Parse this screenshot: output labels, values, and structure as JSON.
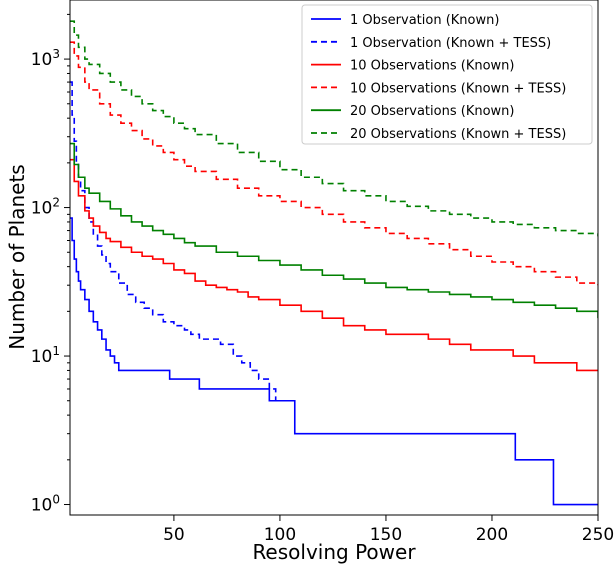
{
  "chart_data": {
    "type": "line",
    "title": "",
    "xlabel": "Resolving Power",
    "ylabel": "Number of Planets",
    "xlim": [
      1,
      250
    ],
    "ylim": [
      0.85,
      2500
    ],
    "yscale": "log",
    "grid": false,
    "legend_position": "top-right",
    "x_ticks": [
      {
        "value": 50,
        "label": "50"
      },
      {
        "value": 100,
        "label": "100"
      },
      {
        "value": 150,
        "label": "150"
      },
      {
        "value": 200,
        "label": "200"
      },
      {
        "value": 250,
        "label": "250"
      }
    ],
    "y_ticks": [
      {
        "value": 1,
        "base": "10",
        "exp": "0"
      },
      {
        "value": 10,
        "base": "10",
        "exp": "1"
      },
      {
        "value": 100,
        "base": "10",
        "exp": "2"
      },
      {
        "value": 1000,
        "base": "10",
        "exp": "3"
      }
    ],
    "series": [
      {
        "name": "1 Observation (Known)",
        "color": "#0000ff",
        "dash": "solid",
        "x": [
          1,
          2,
          3,
          4,
          5,
          6,
          8,
          10,
          12,
          14,
          16,
          18,
          20,
          22,
          24,
          35,
          45,
          48,
          58,
          62,
          75,
          88,
          95,
          98,
          105,
          107,
          140,
          180,
          210,
          211,
          228,
          229,
          250
        ],
        "y": [
          85,
          60,
          45,
          37,
          32,
          28,
          24,
          20,
          17,
          15,
          13,
          11,
          10,
          9,
          8,
          8,
          8,
          7,
          7,
          6,
          6,
          6,
          5,
          5,
          5,
          3,
          3,
          3,
          3,
          2,
          2,
          1,
          1
        ]
      },
      {
        "name": "1 Observation (Known + TESS)",
        "color": "#0000ff",
        "dash": "dashed",
        "x": [
          1,
          2,
          3,
          4,
          5,
          6,
          8,
          10,
          12,
          14,
          16,
          18,
          20,
          24,
          28,
          32,
          36,
          40,
          45,
          50,
          55,
          58,
          62,
          68,
          72,
          78,
          82,
          86,
          90,
          95,
          98,
          100
        ],
        "y": [
          700,
          420,
          280,
          200,
          160,
          130,
          100,
          80,
          65,
          55,
          48,
          42,
          37,
          31,
          26,
          23,
          21,
          19,
          17,
          16,
          15,
          14,
          13,
          13,
          12,
          10,
          9,
          8,
          7,
          6,
          5,
          5
        ]
      },
      {
        "name": "10 Observations (Known)",
        "color": "#ff0000",
        "dash": "solid",
        "x": [
          1,
          3,
          5,
          8,
          10,
          12,
          15,
          18,
          20,
          25,
          30,
          35,
          40,
          45,
          50,
          55,
          60,
          65,
          70,
          75,
          80,
          85,
          90,
          95,
          100,
          110,
          120,
          130,
          140,
          150,
          160,
          170,
          180,
          190,
          200,
          210,
          220,
          230,
          240,
          250
        ],
        "y": [
          210,
          150,
          120,
          95,
          85,
          75,
          68,
          62,
          59,
          54,
          50,
          47,
          45,
          42,
          38,
          36,
          32,
          30,
          29,
          28,
          27,
          25,
          24,
          24,
          22,
          20,
          18,
          16,
          15,
          14,
          14,
          13,
          12,
          11,
          11,
          10,
          9,
          9,
          8,
          8
        ]
      },
      {
        "name": "10 Observations (Known + TESS)",
        "color": "#ff0000",
        "dash": "dashed",
        "x": [
          1,
          3,
          5,
          8,
          10,
          15,
          20,
          25,
          30,
          35,
          40,
          45,
          50,
          55,
          60,
          70,
          80,
          90,
          100,
          110,
          120,
          130,
          140,
          150,
          160,
          170,
          180,
          190,
          200,
          210,
          220,
          230,
          240,
          250
        ],
        "y": [
          1300,
          1050,
          880,
          700,
          620,
          500,
          420,
          370,
          330,
          290,
          260,
          235,
          210,
          190,
          175,
          155,
          135,
          120,
          110,
          100,
          90,
          80,
          73,
          67,
          62,
          57,
          52,
          47,
          43,
          40,
          37,
          34,
          31,
          30
        ]
      },
      {
        "name": "20 Observations (Known)",
        "color": "#008000",
        "dash": "solid",
        "x": [
          1,
          3,
          5,
          8,
          10,
          15,
          20,
          25,
          30,
          35,
          40,
          45,
          50,
          55,
          60,
          70,
          80,
          90,
          100,
          110,
          120,
          130,
          140,
          150,
          160,
          170,
          180,
          190,
          200,
          210,
          220,
          230,
          240,
          250
        ],
        "y": [
          270,
          195,
          160,
          135,
          125,
          110,
          98,
          88,
          80,
          75,
          70,
          66,
          62,
          58,
          55,
          50,
          47,
          44,
          41,
          38,
          35,
          33,
          31,
          29,
          28,
          27,
          26,
          25,
          24,
          23,
          22,
          21,
          20,
          18
        ]
      },
      {
        "name": "20 Observations (Known + TESS)",
        "color": "#008000",
        "dash": "dashed",
        "x": [
          1,
          3,
          5,
          8,
          10,
          15,
          20,
          25,
          30,
          35,
          40,
          45,
          50,
          55,
          60,
          70,
          80,
          90,
          100,
          110,
          120,
          130,
          140,
          150,
          160,
          170,
          180,
          190,
          200,
          210,
          220,
          230,
          240,
          250
        ],
        "y": [
          1800,
          1450,
          1200,
          1000,
          920,
          800,
          700,
          620,
          560,
          500,
          450,
          410,
          370,
          340,
          310,
          270,
          235,
          205,
          180,
          160,
          145,
          130,
          120,
          110,
          102,
          95,
          90,
          85,
          80,
          77,
          73,
          70,
          67,
          64
        ]
      }
    ]
  }
}
